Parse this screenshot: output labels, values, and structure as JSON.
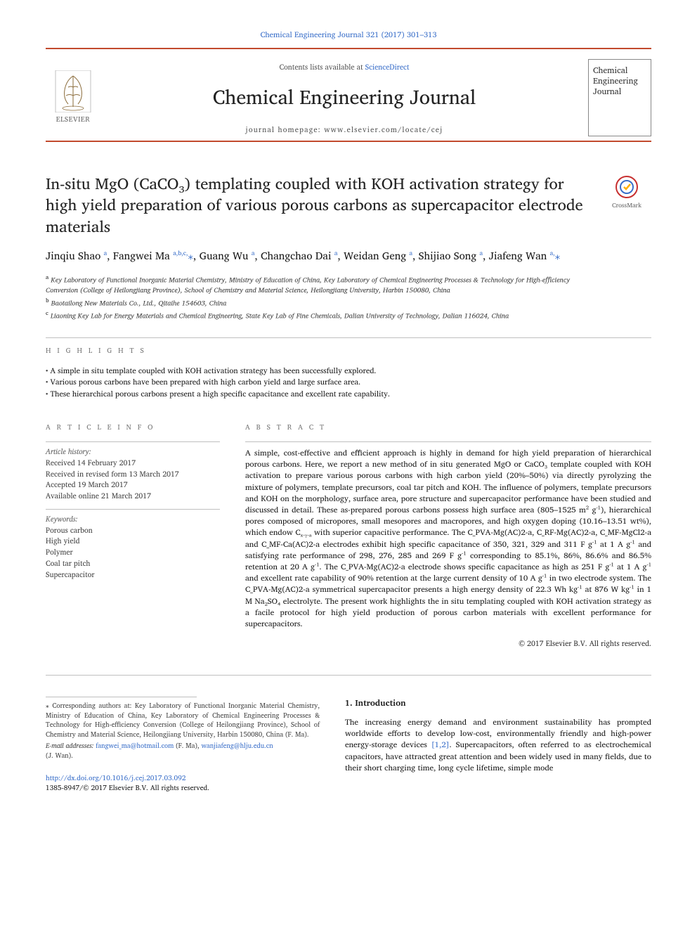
{
  "citation": "Chemical Engineering Journal 321 (2017) 301–313",
  "masthead": {
    "publisher": "ELSEVIER",
    "contents_prefix": "Contents lists available at ",
    "contents_link": "ScienceDirect",
    "journal_name": "Chemical Engineering Journal",
    "homepage": "journal homepage: www.elsevier.com/locate/cej",
    "logo_text_1": "Chemical",
    "logo_text_2": "Engineering",
    "logo_text_3": "Journal"
  },
  "crossmark_label": "CrossMark",
  "title": "In-situ MgO (CaCO₃) templating coupled with KOH activation strategy for high yield preparation of various porous carbons as supercapacitor electrode materials",
  "authors_html": "Jinqiu Shao <sup>a</sup>, Fangwei Ma <sup>a,b,c,</sup><span class='ast'>⁎</span>, Guang Wu <sup>a</sup>, Changchao Dai <sup>a</sup>, Weidan Geng <sup>a</sup>, Shijiao Song <sup>a</sup>, Jiafeng Wan <sup>a,</sup><span class='ast'>⁎</span>",
  "affiliations": {
    "a": "Key Laboratory of Functional Inorganic Material Chemistry, Ministry of Education of China, Key Laboratory of Chemical Engineering Processes & Technology for High-efficiency Conversion (College of Heilongjiang Province), School of Chemistry and Material Science, Heilongjiang University, Harbin 150080, China",
    "b": "Baotailong New Materials Co., Ltd., Qitaihe 154603, China",
    "c": "Liaoning Key Lab for Energy Materials and Chemical Engineering, State Key Lab of Fine Chemicals, Dalian University of Technology, Dalian 116024, China"
  },
  "labels": {
    "highlights": "H I G H L I G H T S",
    "article_info": "A R T I C L E   I N F O",
    "abstract": "A B S T R A C T"
  },
  "highlights": [
    "A simple in situ template coupled with KOH activation strategy has been successfully explored.",
    "Various porous carbons have been prepared with high carbon yield and large surface area.",
    "These hierarchical porous carbons present a high specific capacitance and excellent rate capability."
  ],
  "article_info": {
    "history_label": "Article history:",
    "received": "Received 14 February 2017",
    "revised": "Received in revised form 13 March 2017",
    "accepted": "Accepted 19 March 2017",
    "online": "Available online 21 March 2017",
    "keywords_label": "Keywords:",
    "keywords": [
      "Porous carbon",
      "High yield",
      "Polymer",
      "Coal tar pitch",
      "Supercapacitor"
    ]
  },
  "abstract": "A simple, cost-effective and efficient approach is highly in demand for high yield preparation of hierarchical porous carbons. Here, we report a new method of in situ generated MgO or CaCO₃ template coupled with KOH activation to prepare various porous carbons with high carbon yield (20%–50%) via directly pyrolyzing the mixture of polymers, template precursors, coal tar pitch and KOH. The influence of polymers, template precursors and KOH on the morphology, surface area, pore structure and supercapacitor performance have been studied and discussed in detail. These as-prepared porous carbons possess high surface area (805–1525 m² g⁻¹), hierarchical pores composed of micropores, small mesopores and macropores, and high oxygen doping (10.16–13.51 wt%), which endow Cₓ₋ᵧ₋ₐ with superior capacitive performance. The C_PVA-Mg(AC)2-a, C_RF-Mg(AC)2-a, C_MF-MgCl2-a and C_MF-Ca(AC)2-a electrodes exhibit high specific capacitance of 350, 321, 329 and 311 F g⁻¹ at 1 A g⁻¹ and satisfying rate performance of 298, 276, 285 and 269 F g⁻¹ corresponding to 85.1%, 86%, 86.6% and 86.5% retention at 20 A g⁻¹. The C_PVA-Mg(AC)2-a electrode shows specific capacitance as high as 251 F g⁻¹ at 1 A g⁻¹ and excellent rate capability of 90% retention at the large current density of 10 A g⁻¹ in two electrode system. The C_PVA-Mg(AC)2-a symmetrical supercapacitor presents a high energy density of 22.3 Wh kg⁻¹ at 876 W kg⁻¹ in 1 M Na₂SO₄ electrolyte. The present work highlights the in situ templating coupled with KOH activation strategy as a facile protocol for high yield production of porous carbon materials with excellent performance for supercapacitors.",
  "copyright": "© 2017 Elsevier B.V. All rights reserved.",
  "intro": {
    "heading": "1. Introduction",
    "body_html": "The increasing energy demand and environment sustainability has prompted worldwide efforts to develop low-cost, environmentally friendly and high-power energy-storage devices <a href='#'>[1,2]</a>. Supercapacitors, often referred to as electrochemical capacitors, have attracted great attention and been widely used in many fields, due to their short charging time, long cycle lifetime, simple mode"
  },
  "footnote": {
    "corresponding": "⁎ Corresponding authors at: Key Laboratory of Functional Inorganic Material Chemistry, Ministry of Education of China, Key Laboratory of Chemical Engineering Processes & Technology for High-efficiency Conversion (College of Heilongjiang Province), School of Chemistry and Material Science, Heilongjiang University, Harbin 150080, China (F. Ma).",
    "email_label": "E-mail addresses:",
    "email1": "fangwei_ma@hotmail.com",
    "email1_who": "(F. Ma),",
    "email2": "wanjiafeng@hlju.edu.cn",
    "email2_who": "(J. Wan)."
  },
  "doi": {
    "url": "http://dx.doi.org/10.1016/j.cej.2017.03.092",
    "issn": "1385-8947/© 2017 Elsevier B.V. All rights reserved."
  },
  "colors": {
    "rule": "#c24a2e",
    "link": "#3a6fc9",
    "border": "#bfbfbf"
  }
}
